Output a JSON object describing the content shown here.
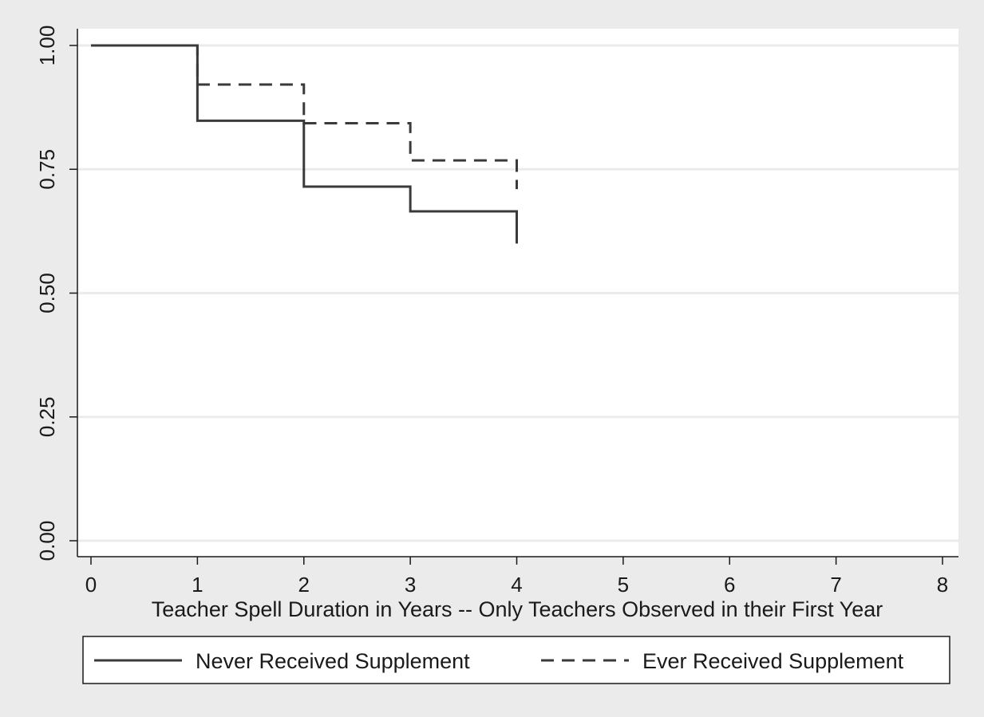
{
  "colors": {
    "outer_background": "#ebebeb",
    "plot_background": "#ffffff",
    "gridline": "#ebebeb",
    "series_line": "#3a3a3a",
    "axis": "#1a1a1a"
  },
  "chart_data": {
    "type": "line",
    "subtype": "step",
    "title": "",
    "xlabel": "Teacher Spell Duration in Years -- Only Teachers Observed in their First Year",
    "ylabel": "",
    "xlim": [
      0,
      8
    ],
    "ylim": [
      0,
      1
    ],
    "x_ticks": [
      0,
      1,
      2,
      3,
      4,
      5,
      6,
      7,
      8
    ],
    "x_tick_labels": [
      "0",
      "1",
      "2",
      "3",
      "4",
      "5",
      "6",
      "7",
      "8"
    ],
    "y_ticks": [
      0,
      0.25,
      0.5,
      0.75,
      1
    ],
    "y_tick_labels": [
      "0.00",
      "0.25",
      "0.50",
      "0.75",
      "1.00"
    ],
    "grid": "horizontal",
    "legend_position": "bottom",
    "series": [
      {
        "name": "Never Received Supplement",
        "style": "solid",
        "x": [
          0,
          1,
          2,
          3,
          4
        ],
        "values": [
          1.0,
          0.848,
          0.715,
          0.665,
          0.6
        ]
      },
      {
        "name": "Ever Received Supplement",
        "style": "dashed",
        "x": [
          0,
          1,
          2,
          3,
          4
        ],
        "values": [
          1.0,
          0.921,
          0.843,
          0.768,
          0.71
        ]
      }
    ]
  }
}
